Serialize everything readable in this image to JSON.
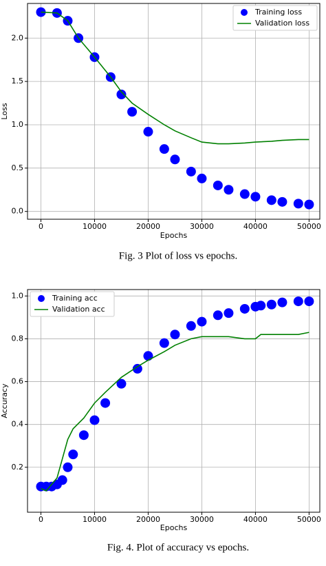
{
  "chart_data": [
    {
      "type": "line",
      "caption": "Fig. 3 Plot of loss vs epochs.",
      "xlabel": "Epochs",
      "ylabel": "Loss",
      "x": [
        0,
        3000,
        5000,
        7000,
        10000,
        13000,
        15000,
        17000,
        20000,
        23000,
        25000,
        28000,
        30000,
        33000,
        35000,
        38000,
        40000,
        43000,
        45000,
        48000,
        50000
      ],
      "series": [
        {
          "name": "Training loss",
          "color": "#0000ff",
          "mark": "point",
          "values": [
            2.3,
            2.29,
            2.2,
            2.0,
            1.78,
            1.55,
            1.35,
            1.15,
            0.92,
            0.72,
            0.6,
            0.46,
            0.38,
            0.3,
            0.25,
            0.2,
            0.17,
            0.13,
            0.11,
            0.09,
            0.08
          ]
        },
        {
          "name": "Validation loss",
          "color": "#008000",
          "mark": "line",
          "values": [
            2.3,
            2.29,
            2.2,
            2.0,
            1.78,
            1.55,
            1.38,
            1.25,
            1.12,
            1.0,
            0.93,
            0.85,
            0.8,
            0.78,
            0.78,
            0.79,
            0.8,
            0.81,
            0.82,
            0.83,
            0.83
          ]
        }
      ],
      "xlim": [
        -2500,
        52000
      ],
      "ylim": [
        -0.09,
        2.4
      ],
      "xticks": [
        0,
        10000,
        20000,
        30000,
        40000,
        50000
      ],
      "yticks": [
        {
          "value": 0,
          "label": "0.0"
        },
        0.5,
        {
          "value": 1,
          "label": "1.0"
        },
        1.5,
        {
          "value": 2,
          "label": "2.0"
        }
      ],
      "grid": true,
      "legend": "upper-right"
    },
    {
      "type": "line",
      "caption": "Fig. 4. Plot of accuracy vs epochs.",
      "xlabel": "Epochs",
      "ylabel": "Accuracy",
      "x": [
        0,
        1000,
        2000,
        3000,
        4000,
        5000,
        6000,
        8000,
        10000,
        12000,
        15000,
        18000,
        20000,
        23000,
        25000,
        28000,
        30000,
        33000,
        35000,
        38000,
        40000,
        41000,
        43000,
        45000,
        48000,
        50000
      ],
      "series": [
        {
          "name": "Training acc",
          "color": "#0000ff",
          "mark": "point",
          "values": [
            0.11,
            0.11,
            0.11,
            0.12,
            0.14,
            0.2,
            0.26,
            0.35,
            0.42,
            0.5,
            0.59,
            0.66,
            0.72,
            0.78,
            0.82,
            0.86,
            0.88,
            0.91,
            0.92,
            0.94,
            0.95,
            0.955,
            0.96,
            0.97,
            0.975,
            0.975
          ]
        },
        {
          "name": "Validation acc",
          "color": "#008000",
          "mark": "line",
          "values": [
            0.1,
            0.09,
            0.12,
            0.15,
            0.24,
            0.33,
            0.38,
            0.43,
            0.5,
            0.55,
            0.62,
            0.67,
            0.7,
            0.74,
            0.77,
            0.8,
            0.81,
            0.81,
            0.81,
            0.8,
            0.8,
            0.82,
            0.82,
            0.82,
            0.82,
            0.83
          ]
        }
      ],
      "xlim": [
        -2500,
        52000
      ],
      "ylim": [
        -0.01,
        1.03
      ],
      "xticks": [
        0,
        10000,
        20000,
        30000,
        40000,
        50000
      ],
      "yticks": [
        0.2,
        0.4,
        0.6,
        0.8,
        {
          "value": 1,
          "label": "1.0"
        }
      ],
      "grid": true,
      "legend": "upper-left"
    }
  ]
}
